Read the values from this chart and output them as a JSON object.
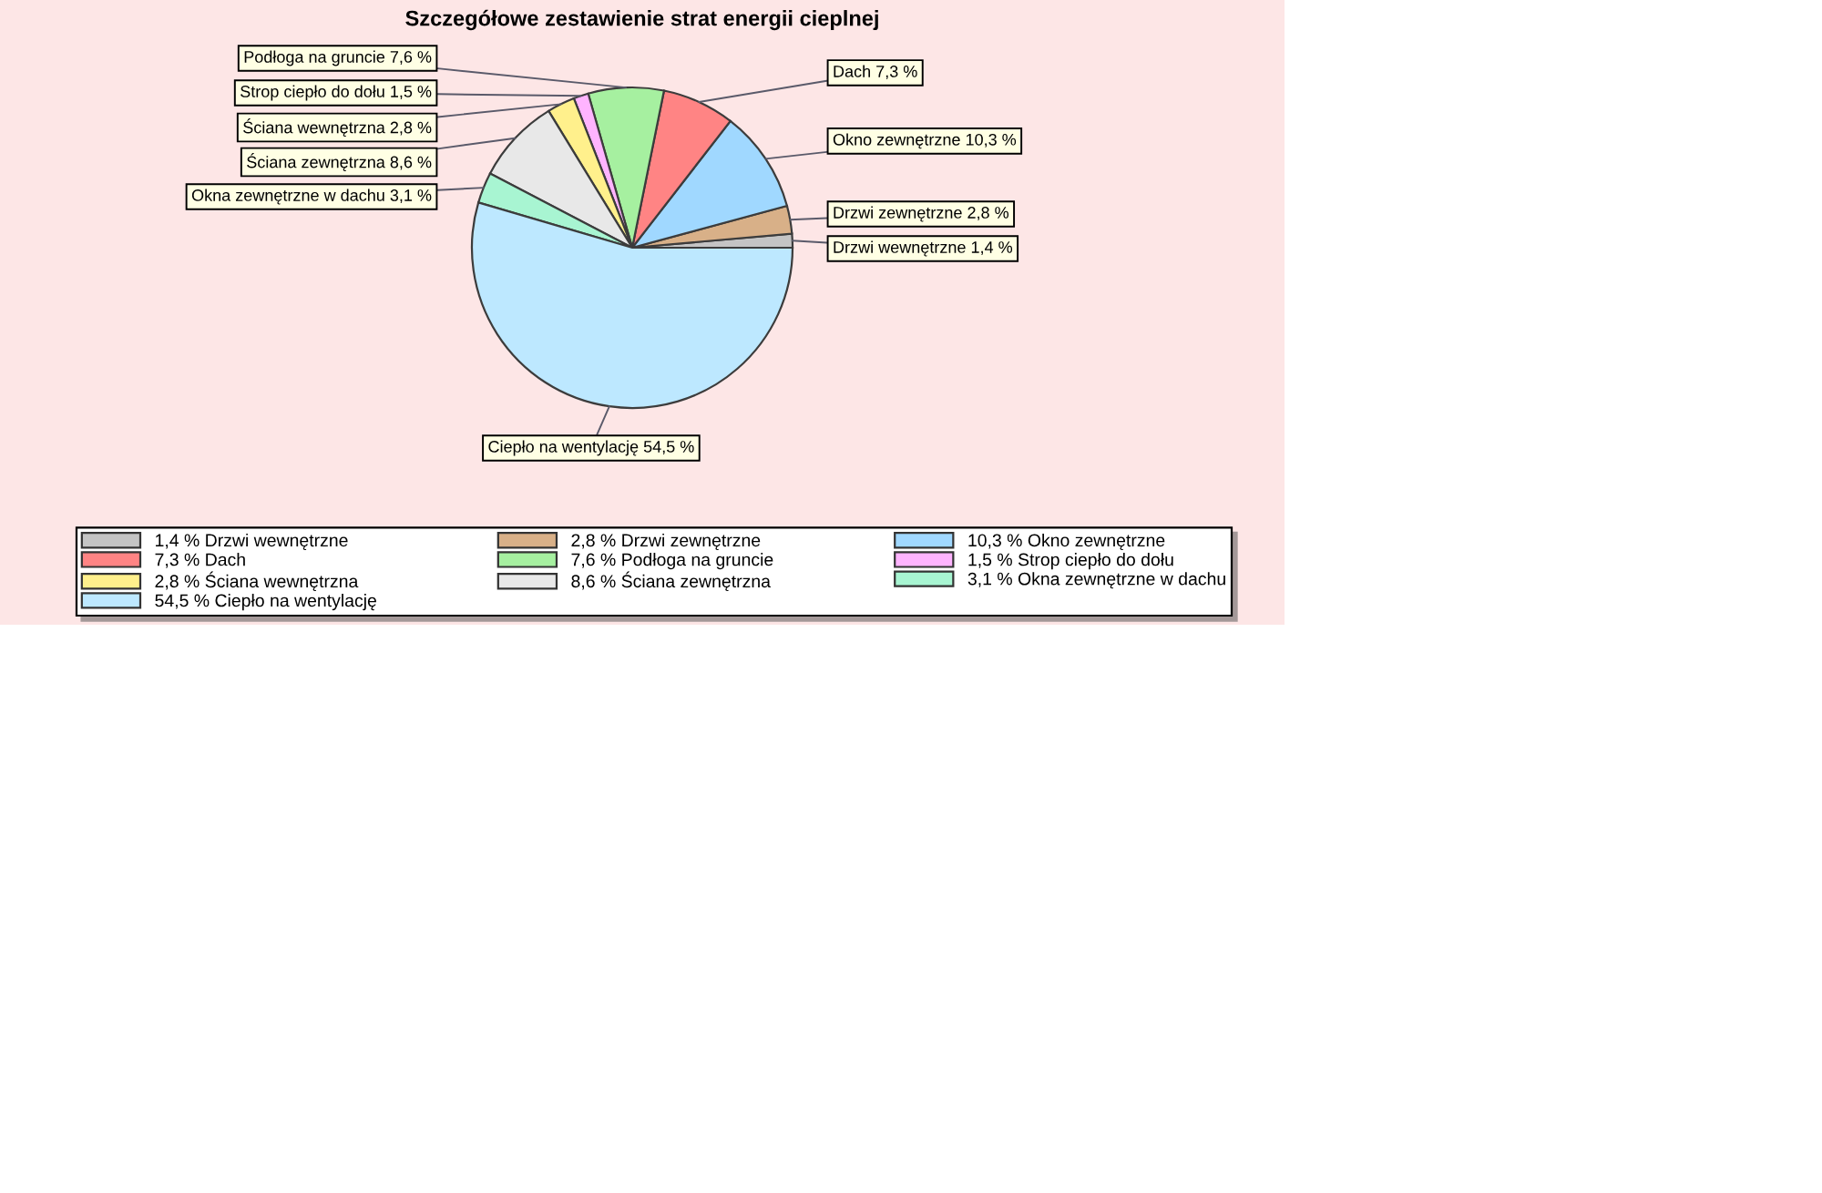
{
  "chart_data": {
    "type": "pie",
    "title": "Szczegółowe zestawienie strat energii cieplnej",
    "categories": [
      "Drzwi wewnętrzne",
      "Drzwi zewnętrzne",
      "Okno zewnętrzne",
      "Dach",
      "Podłoga na gruncie",
      "Strop ciepło do dołu",
      "Ściana wewnętrzna",
      "Ściana zewnętrzna",
      "Okna zewnętrzne w dachu",
      "Ciepło na wentylację"
    ],
    "values": [
      1.4,
      2.8,
      10.3,
      7.3,
      7.6,
      1.5,
      2.8,
      8.6,
      3.1,
      54.5
    ],
    "value_labels": [
      "1,4 %",
      "2,8 %",
      "10,3 %",
      "7,3 %",
      "7,6 %",
      "1,5 %",
      "2,8 %",
      "8,6 %",
      "3,1 %",
      "54,5 %"
    ],
    "colors": [
      "#c4c4c4",
      "#d8b088",
      "#a0d8ff",
      "#ff8484",
      "#a6f0a0",
      "#ffb4ff",
      "#fff08c",
      "#e8e8e8",
      "#a8f5d2",
      "#bde8ff"
    ],
    "legend": "bottom"
  }
}
